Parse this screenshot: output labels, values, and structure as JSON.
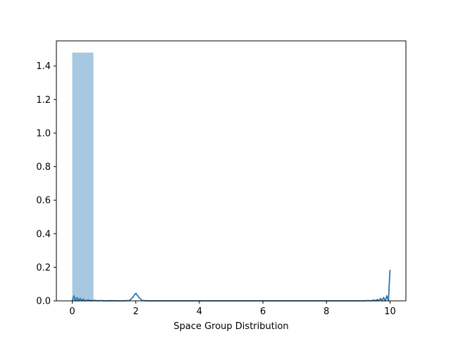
{
  "chart_data": {
    "type": "bar",
    "title": "",
    "xlabel": "Space Group Distribution",
    "ylabel": "",
    "xlim": [
      -0.5,
      10.5
    ],
    "ylim": [
      0,
      1.55
    ],
    "x_ticks": [
      0,
      2,
      4,
      6,
      8,
      10
    ],
    "y_ticks": [
      0.0,
      0.2,
      0.4,
      0.6,
      0.8,
      1.0,
      1.2,
      1.4
    ],
    "grid": false,
    "legend": "none",
    "histogram": {
      "bins": [
        {
          "x0": 0.0,
          "x1": 0.667,
          "value": 1.48
        }
      ],
      "color": "#a6c8e0"
    },
    "density_line": {
      "color": "#2c77b4",
      "x": [
        0.0,
        0.05,
        0.1,
        0.15,
        0.2,
        0.25,
        0.3,
        0.35,
        0.4,
        0.5,
        0.6,
        0.7,
        0.8,
        0.9,
        1.0,
        1.2,
        1.4,
        1.6,
        1.8,
        1.9,
        2.0,
        2.1,
        2.2,
        2.4,
        3.0,
        4.0,
        5.0,
        6.0,
        7.0,
        8.0,
        9.0,
        9.2,
        9.3,
        9.4,
        9.5,
        9.55,
        9.6,
        9.65,
        9.7,
        9.75,
        9.8,
        9.85,
        9.9,
        9.95,
        10.0
      ],
      "y": [
        0.0,
        0.03,
        0.0,
        0.02,
        0.0,
        0.015,
        0.0,
        0.01,
        0.0,
        0.005,
        0.0,
        0.003,
        0.0,
        0.002,
        0.0,
        0.001,
        0.0,
        0.0,
        0.002,
        0.02,
        0.045,
        0.02,
        0.002,
        0.0,
        0.0,
        0.0,
        0.0,
        0.0,
        0.0,
        0.0,
        0.0,
        0.0,
        0.002,
        0.0,
        0.005,
        0.0,
        0.008,
        0.0,
        0.015,
        0.0,
        0.02,
        0.0,
        0.03,
        0.0,
        0.185
      ]
    }
  }
}
